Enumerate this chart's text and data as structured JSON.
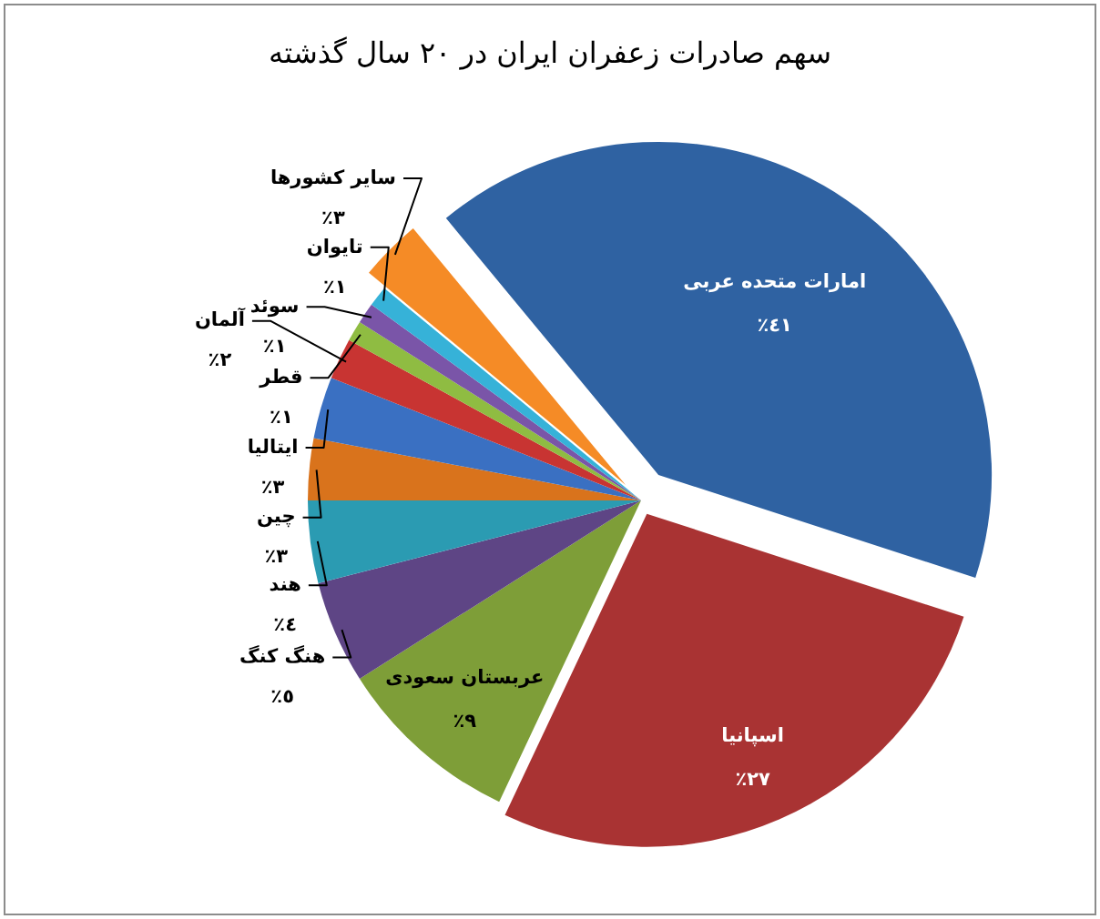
{
  "chart_data": {
    "type": "pie",
    "title": "سهم صادرات زعفران ایران در ۲۰ سال گذشته",
    "categories": [
      "امارات متحده عربی",
      "اسپانیا",
      "عربستان سعودی",
      "هنگ کنگ",
      "هند",
      "چین",
      "ایتالیا",
      "آلمان",
      "قطر",
      "سوئد",
      "تایوان",
      "سایر کشورها"
    ],
    "values": [
      41,
      27,
      9,
      5,
      4,
      3,
      3,
      2,
      1,
      1,
      1,
      3
    ],
    "colors": [
      "#2f62a2",
      "#a93333",
      "#7e9e38",
      "#5e4585",
      "#2b9bb2",
      "#d9731c",
      "#3a70c2",
      "#c83432",
      "#8fbc42",
      "#7a55a8",
      "#36b2d8",
      "#f58b26"
    ],
    "value_labels": [
      "٤١٪",
      "٢٧٪",
      "٩٪",
      "٥٪",
      "٤٪",
      "٣٪",
      "٣٪",
      "٢٪",
      "١٪",
      "١٪",
      "١٪",
      "٣٪"
    ]
  }
}
